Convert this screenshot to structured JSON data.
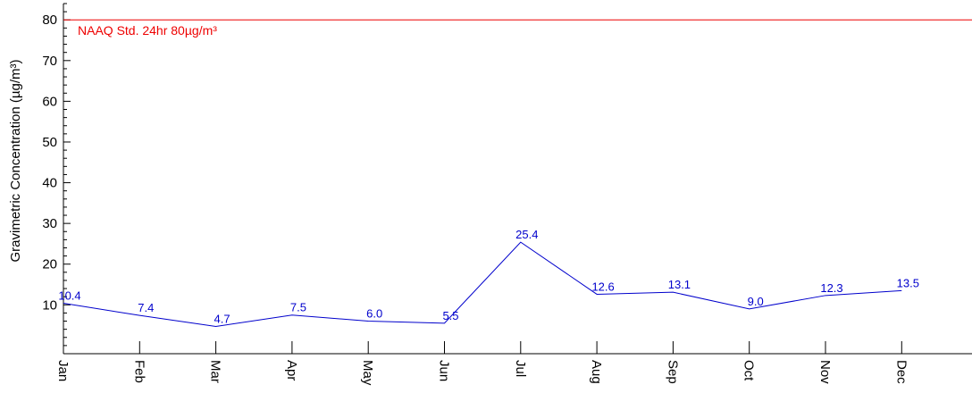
{
  "chart_data": {
    "type": "line",
    "title": "",
    "xlabel": "",
    "ylabel": "Gravimetric Concentration (µg/m³)",
    "categories": [
      "Jan",
      "Feb",
      "Mar",
      "Apr",
      "May",
      "Jun",
      "Jul",
      "Aug",
      "Sep",
      "Oct",
      "Nov",
      "Dec"
    ],
    "series": [
      {
        "values": [
          10.4,
          7.4,
          4.7,
          7.5,
          6.0,
          5.5,
          25.4,
          12.6,
          13.1,
          9.0,
          12.3,
          13.5
        ],
        "labels": [
          "10.4",
          "7.4",
          "4.7",
          "7.5",
          "6.0",
          "5.5",
          "25.4",
          "12.6",
          "13.1",
          "9.0",
          "12.3",
          "13.5"
        ],
        "color": "#0000cc"
      }
    ],
    "reference_line": {
      "value": 80,
      "label": "NAAQ Std. 24hr 80µg/m³",
      "color": "#ee0000"
    },
    "y_ticks": [
      "10",
      "20",
      "30",
      "40",
      "50",
      "60",
      "70",
      "80"
    ],
    "ylim": [
      -2,
      84
    ],
    "grid": false,
    "legend": "none"
  }
}
